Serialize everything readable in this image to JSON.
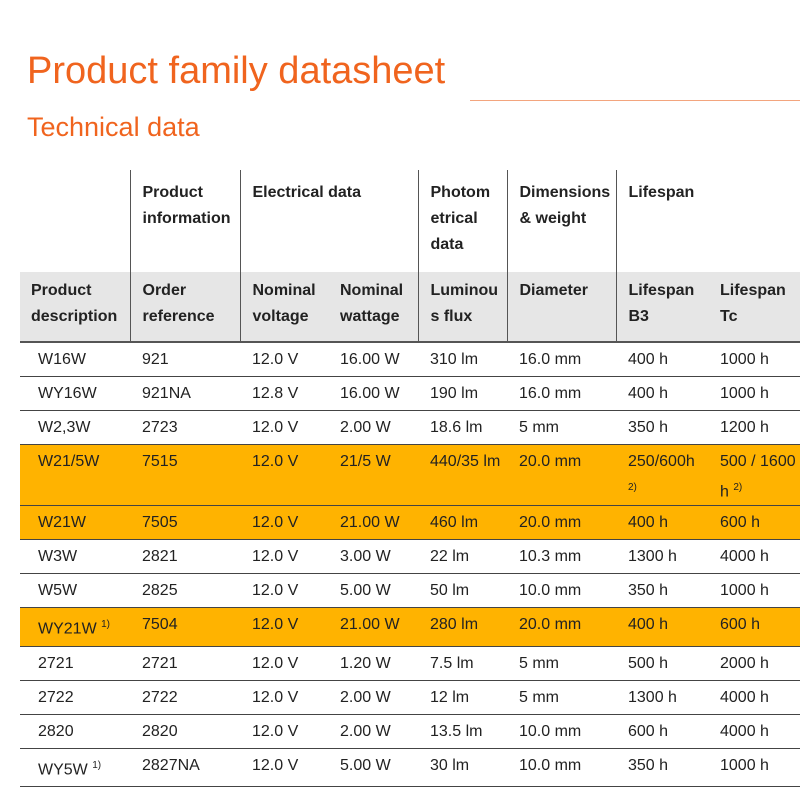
{
  "title": "Product family datasheet",
  "subtitle": "Technical data",
  "highlight_color": "#ffb300",
  "groups": [
    "Product information",
    "Electrical data",
    "Photom etrical data",
    "Dimensions & weight",
    "Lifespan"
  ],
  "headers": [
    "Product description",
    "Order reference",
    "Nominal voltage",
    "Nominal wattage",
    "Luminou s flux",
    "Diameter",
    "Lifespan B3",
    "Lifespan Tc"
  ],
  "rows": [
    {
      "cells": [
        "W16W",
        "921",
        "12.0 V",
        "16.00 W",
        "310 lm",
        "16.0 mm",
        "400 h",
        "1000 h"
      ],
      "highlight": false
    },
    {
      "cells": [
        "WY16W",
        "921NA",
        "12.8 V",
        "16.00 W",
        "190 lm",
        "16.0 mm",
        "400 h",
        "1000 h"
      ],
      "highlight": false
    },
    {
      "cells": [
        "W2,3W",
        "2723",
        "12.0 V",
        "2.00 W",
        "18.6 lm",
        "5 mm",
        "350 h",
        "1200 h"
      ],
      "highlight": false
    },
    {
      "cells": [
        "W21/5W",
        "7515",
        "12.0 V",
        "21/5 W",
        "440/35 lm",
        "20.0 mm",
        "250/600h",
        "500 / 1600 h"
      ],
      "notes": {
        "6": "2)",
        "7": "2)"
      },
      "highlight": true,
      "tall": true
    },
    {
      "cells": [
        "W21W",
        "7505",
        "12.0 V",
        "21.00 W",
        "460 lm",
        "20.0 mm",
        "400 h",
        "600 h"
      ],
      "highlight": true
    },
    {
      "cells": [
        "W3W",
        "2821",
        "12.0 V",
        "3.00 W",
        "22 lm",
        "10.3 mm",
        "1300 h",
        "4000 h"
      ],
      "highlight": false
    },
    {
      "cells": [
        "W5W",
        "2825",
        "12.0 V",
        "5.00 W",
        "50 lm",
        "10.0 mm",
        "350 h",
        "1000 h"
      ],
      "highlight": false
    },
    {
      "cells": [
        "WY21W",
        "7504",
        "12.0 V",
        "21.00 W",
        "280 lm",
        "20.0 mm",
        "400 h",
        "600 h"
      ],
      "notes": {
        "0": "1)"
      },
      "highlight": true
    },
    {
      "cells": [
        "2721",
        "2721",
        "12.0 V",
        "1.20 W",
        "7.5 lm",
        "5 mm",
        "500 h",
        "2000 h"
      ],
      "highlight": false
    },
    {
      "cells": [
        "2722",
        "2722",
        "12.0 V",
        "2.00 W",
        "12 lm",
        "5 mm",
        "1300 h",
        "4000 h"
      ],
      "highlight": false
    },
    {
      "cells": [
        "2820",
        "2820",
        "12.0 V",
        "2.00 W",
        "13.5 lm",
        "10.0 mm",
        "600 h",
        "4000 h"
      ],
      "highlight": false
    },
    {
      "cells": [
        "WY5W",
        "2827NA",
        "12.0 V",
        "5.00 W",
        "30 lm",
        "10.0 mm",
        "350 h",
        "1000 h"
      ],
      "notes": {
        "0": "1)"
      },
      "highlight": false
    }
  ]
}
